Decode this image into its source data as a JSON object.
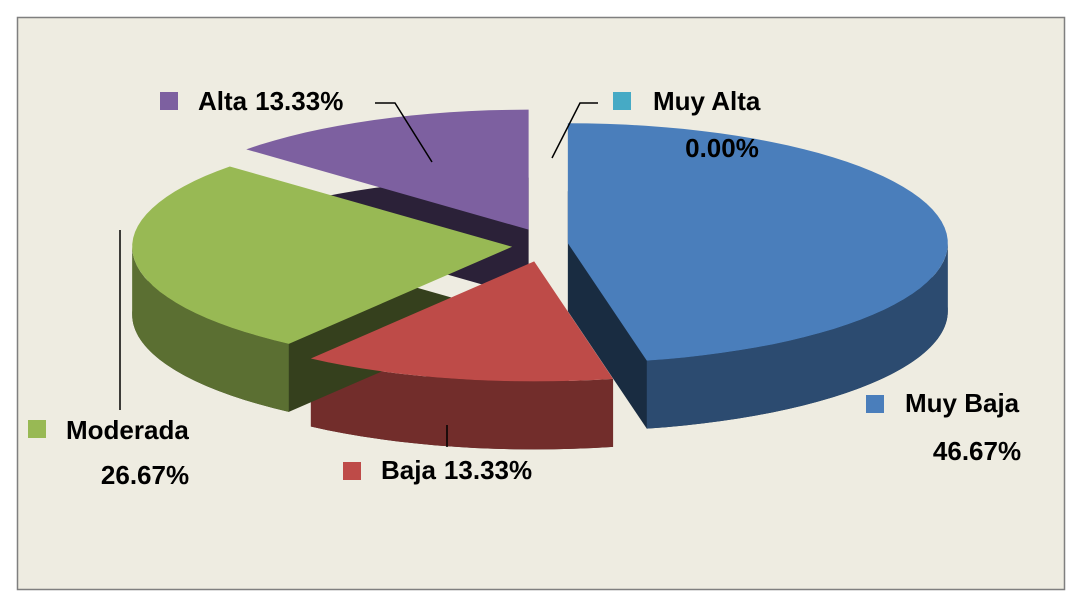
{
  "chart_data": {
    "type": "pie",
    "categories": [
      "Muy Baja",
      "Baja",
      "Moderada",
      "Alta",
      "Muy Alta"
    ],
    "values": [
      46.67,
      13.33,
      26.67,
      13.33,
      0
    ],
    "value_labels": [
      "46.67%",
      "13.33%",
      "26.67%",
      "13.33%",
      "0.00%"
    ],
    "colors": [
      "#4a7ebb",
      "#be4b48",
      "#98b954",
      "#7d60a0",
      "#46aac5"
    ]
  }
}
